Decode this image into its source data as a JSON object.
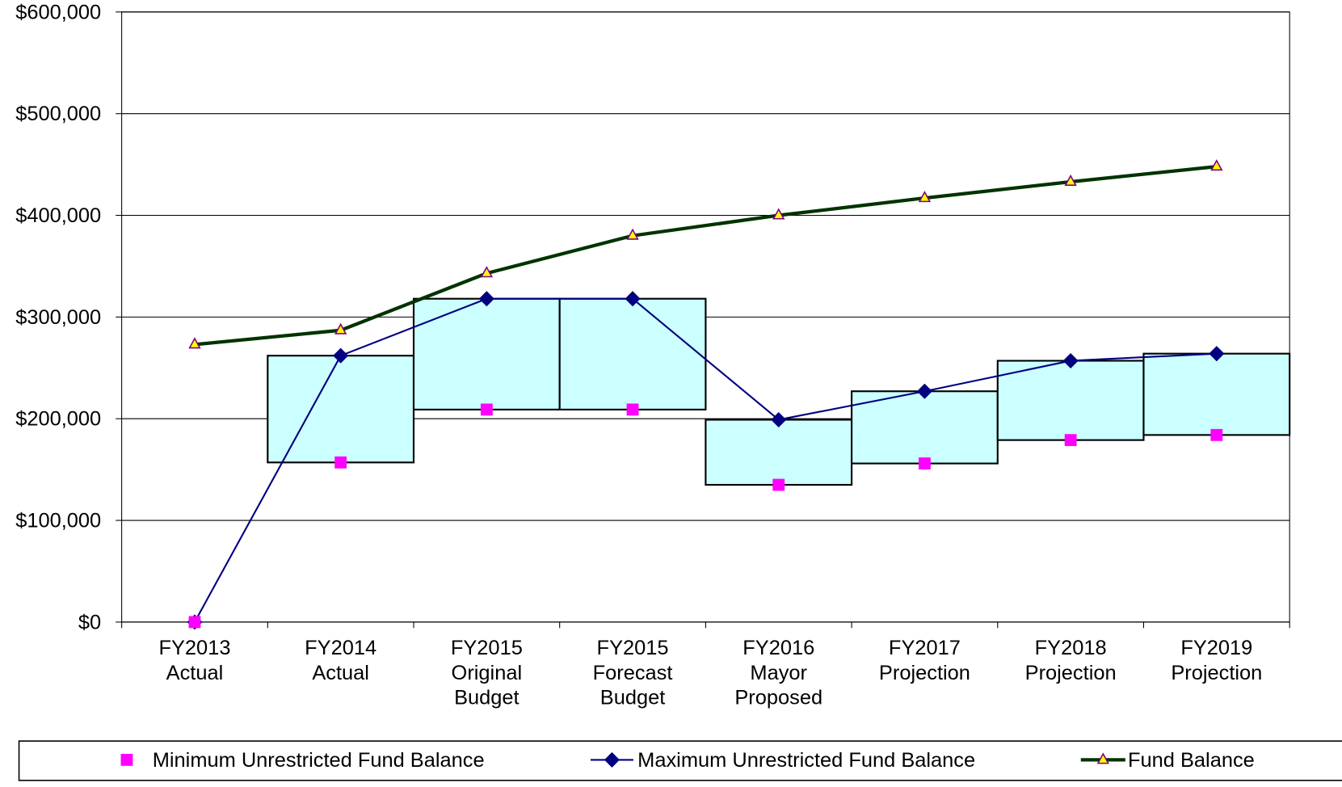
{
  "chart_data": {
    "type": "range-line",
    "categories": [
      [
        "FY2013",
        "Actual"
      ],
      [
        "FY2014",
        "Actual"
      ],
      [
        "FY2015",
        "Original",
        "Budget"
      ],
      [
        "FY2015",
        "Forecast",
        "Budget"
      ],
      [
        "FY2016",
        "Mayor",
        "Proposed"
      ],
      [
        "FY2017",
        "Projection"
      ],
      [
        "FY2018",
        "Projection"
      ],
      [
        "FY2019",
        "Projection"
      ]
    ],
    "series": [
      {
        "name": "Minimum Unrestricted Fund Balance",
        "color": "#ff00ff",
        "values": [
          0,
          157000,
          209000,
          209000,
          135000,
          156000,
          179000,
          184000
        ]
      },
      {
        "name": "Maximum Unrestricted Fund Balance",
        "color": "#000080",
        "values": [
          0,
          262000,
          318000,
          318000,
          199000,
          227000,
          257000,
          264000
        ]
      },
      {
        "name": "Fund Balance",
        "color": "#003300",
        "values": [
          273000,
          287000,
          343000,
          380000,
          400000,
          417000,
          433000,
          448000
        ]
      }
    ],
    "range_fill": "#ccffff",
    "ylim": [
      0,
      600000
    ],
    "yticks": [
      {
        "value": 0,
        "label": "$0"
      },
      {
        "value": 100000,
        "label": "$100,000"
      },
      {
        "value": 200000,
        "label": "$200,000"
      },
      {
        "value": 300000,
        "label": "$300,000"
      },
      {
        "value": 400000,
        "label": "$400,000"
      },
      {
        "value": 500000,
        "label": "$500,000"
      },
      {
        "value": 600000,
        "label": "$600,000"
      }
    ],
    "grid": true,
    "legend": "bottom"
  }
}
